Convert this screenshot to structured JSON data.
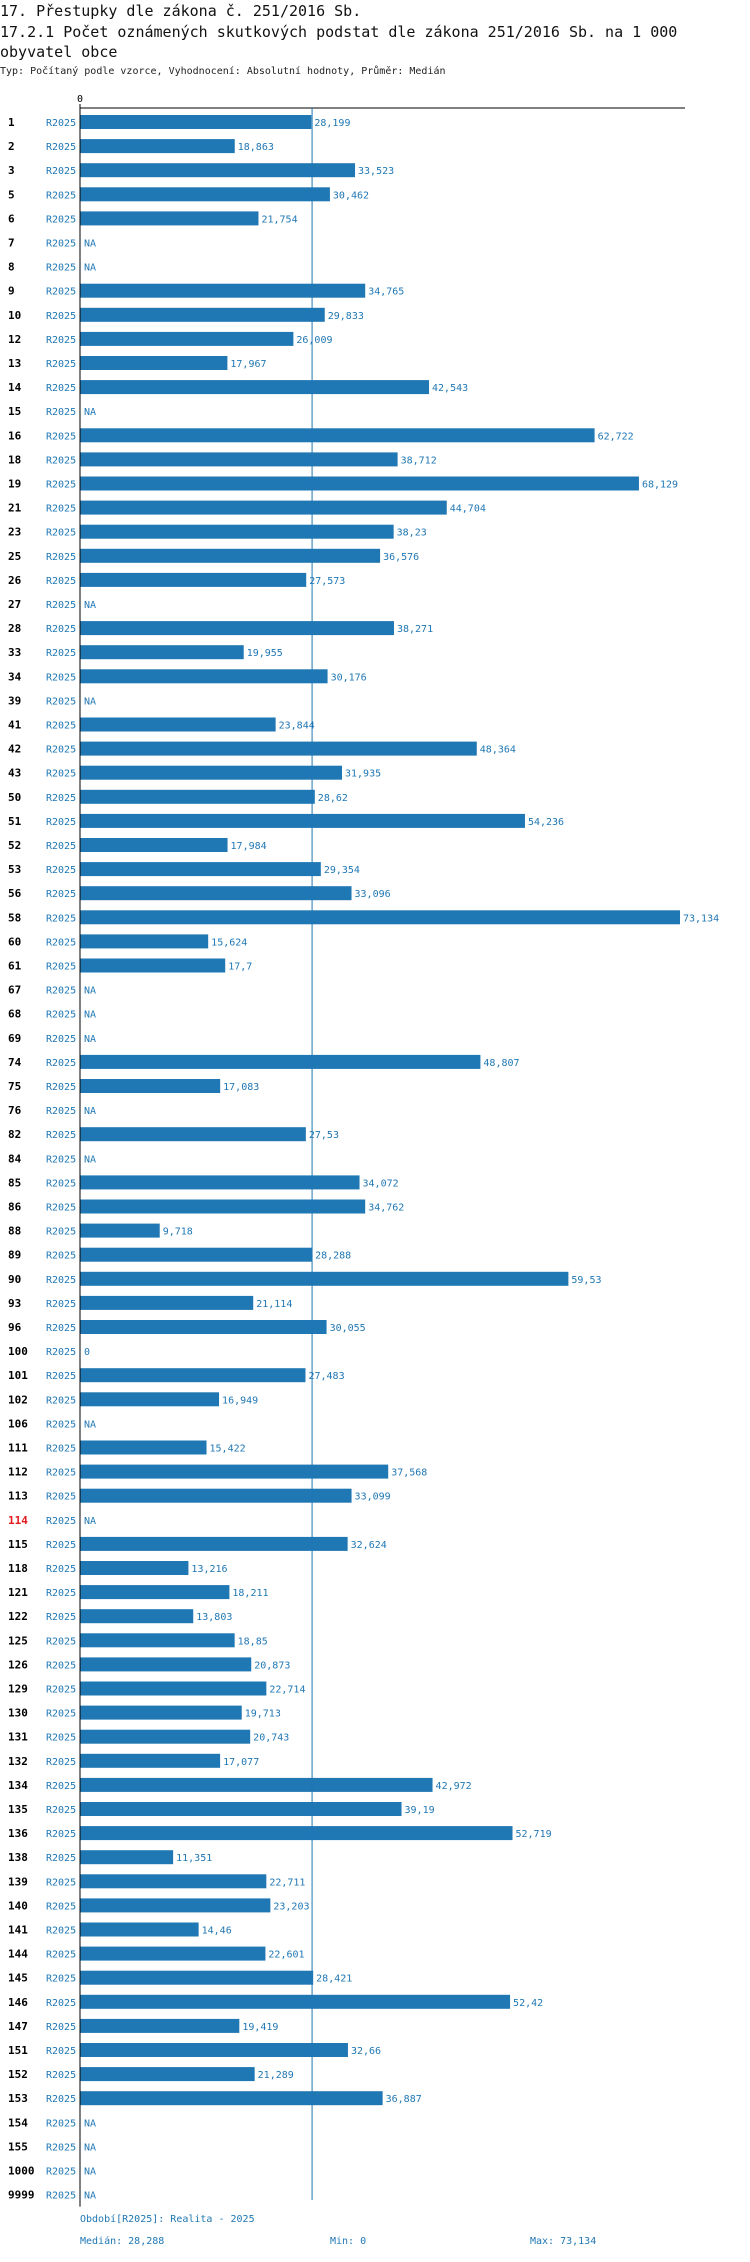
{
  "header": {
    "title": "17. Přestupky dle zákona č. 251/2016 Sb.",
    "subtitle": "17.2.1 Počet oznámených skutkových podstat dle zákona 251/2016 Sb. na 1 000 obyvatel obce",
    "meta": "Typ: Počítaný podle vzorce, Vyhodnocení: Absolutní hodnoty, Průměr: Medián"
  },
  "footer": {
    "period": "Období[R2025]: Realita - 2025",
    "median": "Medián: 28,288",
    "min": "Min: 0",
    "max": "Max: 73,134"
  },
  "colors": {
    "bar": "#1f77b4",
    "text_blue": "#1f77b4",
    "highlight": "#e31a1c",
    "axis": "#000000"
  },
  "chart_data": {
    "type": "bar",
    "orientation": "horizontal",
    "axis_zero_label": "0",
    "xlim": [
      0,
      73.134
    ],
    "median": 28.288,
    "rows": [
      {
        "id": "1",
        "period": "R2025",
        "value": 28.199,
        "label": "28,199"
      },
      {
        "id": "2",
        "period": "R2025",
        "value": 18.863,
        "label": "18,863"
      },
      {
        "id": "3",
        "period": "R2025",
        "value": 33.523,
        "label": "33,523"
      },
      {
        "id": "5",
        "period": "R2025",
        "value": 30.462,
        "label": "30,462"
      },
      {
        "id": "6",
        "period": "R2025",
        "value": 21.754,
        "label": "21,754"
      },
      {
        "id": "7",
        "period": "R2025",
        "value": null,
        "label": "NA"
      },
      {
        "id": "8",
        "period": "R2025",
        "value": null,
        "label": "NA"
      },
      {
        "id": "9",
        "period": "R2025",
        "value": 34.765,
        "label": "34,765"
      },
      {
        "id": "10",
        "period": "R2025",
        "value": 29.833,
        "label": "29,833"
      },
      {
        "id": "12",
        "period": "R2025",
        "value": 26.009,
        "label": "26,009"
      },
      {
        "id": "13",
        "period": "R2025",
        "value": 17.967,
        "label": "17,967"
      },
      {
        "id": "14",
        "period": "R2025",
        "value": 42.543,
        "label": "42,543"
      },
      {
        "id": "15",
        "period": "R2025",
        "value": null,
        "label": "NA"
      },
      {
        "id": "16",
        "period": "R2025",
        "value": 62.722,
        "label": "62,722"
      },
      {
        "id": "18",
        "period": "R2025",
        "value": 38.712,
        "label": "38,712"
      },
      {
        "id": "19",
        "period": "R2025",
        "value": 68.129,
        "label": "68,129"
      },
      {
        "id": "21",
        "period": "R2025",
        "value": 44.704,
        "label": "44,704"
      },
      {
        "id": "23",
        "period": "R2025",
        "value": 38.23,
        "label": "38,23"
      },
      {
        "id": "25",
        "period": "R2025",
        "value": 36.576,
        "label": "36,576"
      },
      {
        "id": "26",
        "period": "R2025",
        "value": 27.573,
        "label": "27,573"
      },
      {
        "id": "27",
        "period": "R2025",
        "value": null,
        "label": "NA"
      },
      {
        "id": "28",
        "period": "R2025",
        "value": 38.271,
        "label": "38,271"
      },
      {
        "id": "33",
        "period": "R2025",
        "value": 19.955,
        "label": "19,955"
      },
      {
        "id": "34",
        "period": "R2025",
        "value": 30.176,
        "label": "30,176"
      },
      {
        "id": "39",
        "period": "R2025",
        "value": null,
        "label": "NA"
      },
      {
        "id": "41",
        "period": "R2025",
        "value": 23.844,
        "label": "23,844"
      },
      {
        "id": "42",
        "period": "R2025",
        "value": 48.364,
        "label": "48,364"
      },
      {
        "id": "43",
        "period": "R2025",
        "value": 31.935,
        "label": "31,935"
      },
      {
        "id": "50",
        "period": "R2025",
        "value": 28.62,
        "label": "28,62"
      },
      {
        "id": "51",
        "period": "R2025",
        "value": 54.236,
        "label": "54,236"
      },
      {
        "id": "52",
        "period": "R2025",
        "value": 17.984,
        "label": "17,984"
      },
      {
        "id": "53",
        "period": "R2025",
        "value": 29.354,
        "label": "29,354"
      },
      {
        "id": "56",
        "period": "R2025",
        "value": 33.096,
        "label": "33,096"
      },
      {
        "id": "58",
        "period": "R2025",
        "value": 73.134,
        "label": "73,134"
      },
      {
        "id": "60",
        "period": "R2025",
        "value": 15.624,
        "label": "15,624"
      },
      {
        "id": "61",
        "period": "R2025",
        "value": 17.7,
        "label": "17,7"
      },
      {
        "id": "67",
        "period": "R2025",
        "value": null,
        "label": "NA"
      },
      {
        "id": "68",
        "period": "R2025",
        "value": null,
        "label": "NA"
      },
      {
        "id": "69",
        "period": "R2025",
        "value": null,
        "label": "NA"
      },
      {
        "id": "74",
        "period": "R2025",
        "value": 48.807,
        "label": "48,807"
      },
      {
        "id": "75",
        "period": "R2025",
        "value": 17.083,
        "label": "17,083"
      },
      {
        "id": "76",
        "period": "R2025",
        "value": null,
        "label": "NA"
      },
      {
        "id": "82",
        "period": "R2025",
        "value": 27.53,
        "label": "27,53"
      },
      {
        "id": "84",
        "period": "R2025",
        "value": null,
        "label": "NA"
      },
      {
        "id": "85",
        "period": "R2025",
        "value": 34.072,
        "label": "34,072"
      },
      {
        "id": "86",
        "period": "R2025",
        "value": 34.762,
        "label": "34,762"
      },
      {
        "id": "88",
        "period": "R2025",
        "value": 9.718,
        "label": "9,718"
      },
      {
        "id": "89",
        "period": "R2025",
        "value": 28.288,
        "label": "28,288"
      },
      {
        "id": "90",
        "period": "R2025",
        "value": 59.53,
        "label": "59,53"
      },
      {
        "id": "93",
        "period": "R2025",
        "value": 21.114,
        "label": "21,114"
      },
      {
        "id": "96",
        "period": "R2025",
        "value": 30.055,
        "label": "30,055"
      },
      {
        "id": "100",
        "period": "R2025",
        "value": 0,
        "label": "0"
      },
      {
        "id": "101",
        "period": "R2025",
        "value": 27.483,
        "label": "27,483"
      },
      {
        "id": "102",
        "period": "R2025",
        "value": 16.949,
        "label": "16,949"
      },
      {
        "id": "106",
        "period": "R2025",
        "value": null,
        "label": "NA"
      },
      {
        "id": "111",
        "period": "R2025",
        "value": 15.422,
        "label": "15,422"
      },
      {
        "id": "112",
        "period": "R2025",
        "value": 37.568,
        "label": "37,568"
      },
      {
        "id": "113",
        "period": "R2025",
        "value": 33.099,
        "label": "33,099"
      },
      {
        "id": "114",
        "period": "R2025",
        "value": null,
        "label": "NA",
        "highlight": true
      },
      {
        "id": "115",
        "period": "R2025",
        "value": 32.624,
        "label": "32,624"
      },
      {
        "id": "118",
        "period": "R2025",
        "value": 13.216,
        "label": "13,216"
      },
      {
        "id": "121",
        "period": "R2025",
        "value": 18.211,
        "label": "18,211"
      },
      {
        "id": "122",
        "period": "R2025",
        "value": 13.803,
        "label": "13,803"
      },
      {
        "id": "125",
        "period": "R2025",
        "value": 18.85,
        "label": "18,85"
      },
      {
        "id": "126",
        "period": "R2025",
        "value": 20.873,
        "label": "20,873"
      },
      {
        "id": "129",
        "period": "R2025",
        "value": 22.714,
        "label": "22,714"
      },
      {
        "id": "130",
        "period": "R2025",
        "value": 19.713,
        "label": "19,713"
      },
      {
        "id": "131",
        "period": "R2025",
        "value": 20.743,
        "label": "20,743"
      },
      {
        "id": "132",
        "period": "R2025",
        "value": 17.077,
        "label": "17,077"
      },
      {
        "id": "134",
        "period": "R2025",
        "value": 42.972,
        "label": "42,972"
      },
      {
        "id": "135",
        "period": "R2025",
        "value": 39.19,
        "label": "39,19"
      },
      {
        "id": "136",
        "period": "R2025",
        "value": 52.719,
        "label": "52,719"
      },
      {
        "id": "138",
        "period": "R2025",
        "value": 11.351,
        "label": "11,351"
      },
      {
        "id": "139",
        "period": "R2025",
        "value": 22.711,
        "label": "22,711"
      },
      {
        "id": "140",
        "period": "R2025",
        "value": 23.203,
        "label": "23,203"
      },
      {
        "id": "141",
        "period": "R2025",
        "value": 14.46,
        "label": "14,46"
      },
      {
        "id": "144",
        "period": "R2025",
        "value": 22.601,
        "label": "22,601"
      },
      {
        "id": "145",
        "period": "R2025",
        "value": 28.421,
        "label": "28,421"
      },
      {
        "id": "146",
        "period": "R2025",
        "value": 52.42,
        "label": "52,42"
      },
      {
        "id": "147",
        "period": "R2025",
        "value": 19.419,
        "label": "19,419"
      },
      {
        "id": "151",
        "period": "R2025",
        "value": 32.66,
        "label": "32,66"
      },
      {
        "id": "152",
        "period": "R2025",
        "value": 21.289,
        "label": "21,289"
      },
      {
        "id": "153",
        "period": "R2025",
        "value": 36.887,
        "label": "36,887"
      },
      {
        "id": "154",
        "period": "R2025",
        "value": null,
        "label": "NA"
      },
      {
        "id": "155",
        "period": "R2025",
        "value": null,
        "label": "NA"
      },
      {
        "id": "1000",
        "period": "R2025",
        "value": null,
        "label": "NA"
      },
      {
        "id": "9999",
        "period": "R2025",
        "value": null,
        "label": "NA"
      }
    ]
  }
}
